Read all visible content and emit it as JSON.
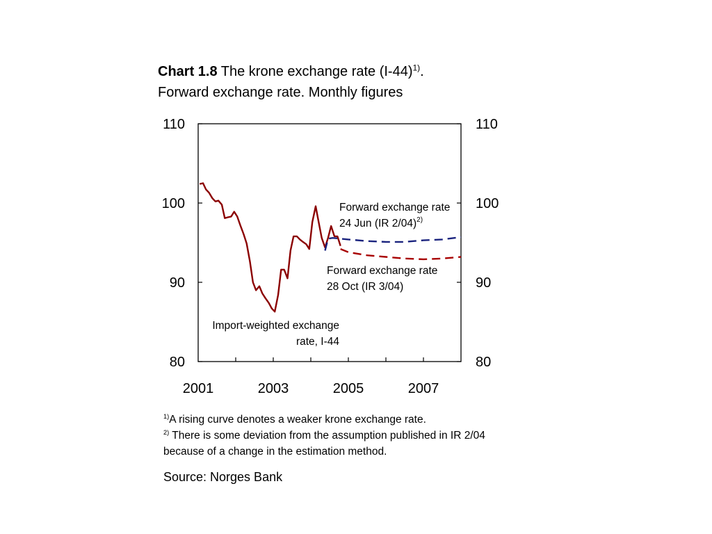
{
  "title": {
    "chart_no": "Chart 1.8",
    "text": " The krone exchange rate (I-44)",
    "sup": "1)",
    "tail": ".",
    "line2": "Forward exchange rate. Monthly figures"
  },
  "annotations": {
    "jun_line1": "Forward exchange rate",
    "jun_line2": "24 Jun (IR 2/04)",
    "jun_sup": "2)",
    "oct_line1": "Forward exchange rate",
    "oct_line2": "28 Oct (IR 3/04)",
    "i44_line1": "Import-weighted exchange",
    "i44_line2": "rate, I-44"
  },
  "footnotes": {
    "n1_sup": "1)",
    "n1_text": "A rising curve denotes a weaker krone exchange rate.",
    "n2_sup": "2)",
    "n2_text": " There is some deviation from the assumption published in IR 2/04",
    "n2_text2": "because of a change in the estimation method."
  },
  "source": "Source: Norges Bank",
  "colors": {
    "i44": "#8b0000",
    "forward_jun": "#1a237e",
    "forward_oct": "#a80000",
    "axis": "#000000"
  },
  "chart_data": {
    "type": "line",
    "title": "Chart 1.8 The krone exchange rate (I-44)1). Forward exchange rate. Monthly figures",
    "xlabel": "",
    "ylabel": "",
    "x_ticks": [
      "2001",
      "2003",
      "2005",
      "2007"
    ],
    "y_ticks": [
      "80",
      "90",
      "100",
      "110"
    ],
    "xlim": [
      2001.0,
      2008.0
    ],
    "ylim": [
      80,
      110
    ],
    "y_axis_right": true,
    "grid": false,
    "series": [
      {
        "name": "Import-weighted exchange rate, I-44",
        "style": "solid",
        "color": "#8b0000",
        "points": [
          [
            2001.04,
            102.4
          ],
          [
            2001.13,
            102.5
          ],
          [
            2001.21,
            101.7
          ],
          [
            2001.29,
            101.3
          ],
          [
            2001.38,
            100.6
          ],
          [
            2001.46,
            100.2
          ],
          [
            2001.54,
            100.3
          ],
          [
            2001.63,
            99.8
          ],
          [
            2001.71,
            98.1
          ],
          [
            2001.79,
            98.2
          ],
          [
            2001.88,
            98.3
          ],
          [
            2001.96,
            98.9
          ],
          [
            2002.04,
            98.3
          ],
          [
            2002.13,
            97.1
          ],
          [
            2002.21,
            96.1
          ],
          [
            2002.29,
            94.9
          ],
          [
            2002.38,
            92.6
          ],
          [
            2002.46,
            90.0
          ],
          [
            2002.54,
            89.0
          ],
          [
            2002.63,
            89.5
          ],
          [
            2002.71,
            88.6
          ],
          [
            2002.79,
            88.0
          ],
          [
            2002.88,
            87.4
          ],
          [
            2002.96,
            86.7
          ],
          [
            2003.04,
            86.3
          ],
          [
            2003.13,
            88.4
          ],
          [
            2003.21,
            91.6
          ],
          [
            2003.29,
            91.6
          ],
          [
            2003.38,
            90.5
          ],
          [
            2003.46,
            94.0
          ],
          [
            2003.54,
            95.8
          ],
          [
            2003.63,
            95.8
          ],
          [
            2003.71,
            95.4
          ],
          [
            2003.79,
            95.1
          ],
          [
            2003.88,
            94.8
          ],
          [
            2003.96,
            94.2
          ],
          [
            2004.04,
            97.6
          ],
          [
            2004.13,
            99.6
          ],
          [
            2004.21,
            97.6
          ],
          [
            2004.29,
            95.6
          ],
          [
            2004.38,
            94.4
          ],
          [
            2004.46,
            95.6
          ],
          [
            2004.54,
            97.1
          ],
          [
            2004.63,
            95.8
          ],
          [
            2004.71,
            95.8
          ],
          [
            2004.79,
            94.6
          ]
        ]
      },
      {
        "name": "Forward exchange rate 24 Jun (IR 2/04)",
        "style": "dashed",
        "color": "#1a237e",
        "points": [
          [
            2004.38,
            94.0
          ],
          [
            2004.46,
            95.5
          ],
          [
            2004.58,
            95.6
          ],
          [
            2005.0,
            95.4
          ],
          [
            2005.5,
            95.2
          ],
          [
            2006.0,
            95.1
          ],
          [
            2006.5,
            95.1
          ],
          [
            2007.0,
            95.3
          ],
          [
            2007.5,
            95.4
          ],
          [
            2008.0,
            95.7
          ]
        ]
      },
      {
        "name": "Forward exchange rate 28 Oct (IR 3/04)",
        "style": "dashed",
        "color": "#a80000",
        "points": [
          [
            2004.79,
            94.2
          ],
          [
            2005.0,
            93.8
          ],
          [
            2005.5,
            93.4
          ],
          [
            2006.0,
            93.2
          ],
          [
            2006.5,
            93.0
          ],
          [
            2007.0,
            92.9
          ],
          [
            2007.5,
            93.0
          ],
          [
            2008.0,
            93.2
          ]
        ]
      }
    ]
  }
}
